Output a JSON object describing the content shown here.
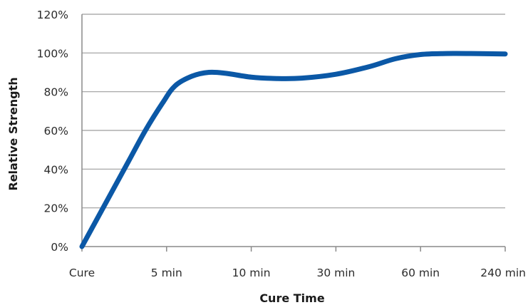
{
  "chart_data": {
    "type": "line",
    "title": "",
    "xlabel": "Cure Time",
    "ylabel": "Relative Strength",
    "categories": [
      "Cure",
      "5 min",
      "10 min",
      "30 min",
      "60 min",
      "240 min"
    ],
    "y_ticks": [
      "0%",
      "20%",
      "40%",
      "60%",
      "80%",
      "100%",
      "120%"
    ],
    "ylim": [
      0,
      120
    ],
    "grid": true,
    "series": [
      {
        "color": "#0b58a6",
        "x": [
          0,
          0.15,
          0.35,
          0.55,
          0.75,
          0.95,
          1.1,
          1.3,
          1.5,
          1.7,
          2.0,
          2.3,
          2.6,
          3.0,
          3.4,
          3.7,
          4.0,
          4.3,
          4.6,
          5.0
        ],
        "values": [
          0,
          12,
          28,
          44,
          60,
          74,
          83,
          88,
          90,
          89.5,
          87.5,
          86.8,
          87,
          89,
          93,
          97,
          99.2,
          99.7,
          99.7,
          99.5
        ]
      }
    ]
  }
}
